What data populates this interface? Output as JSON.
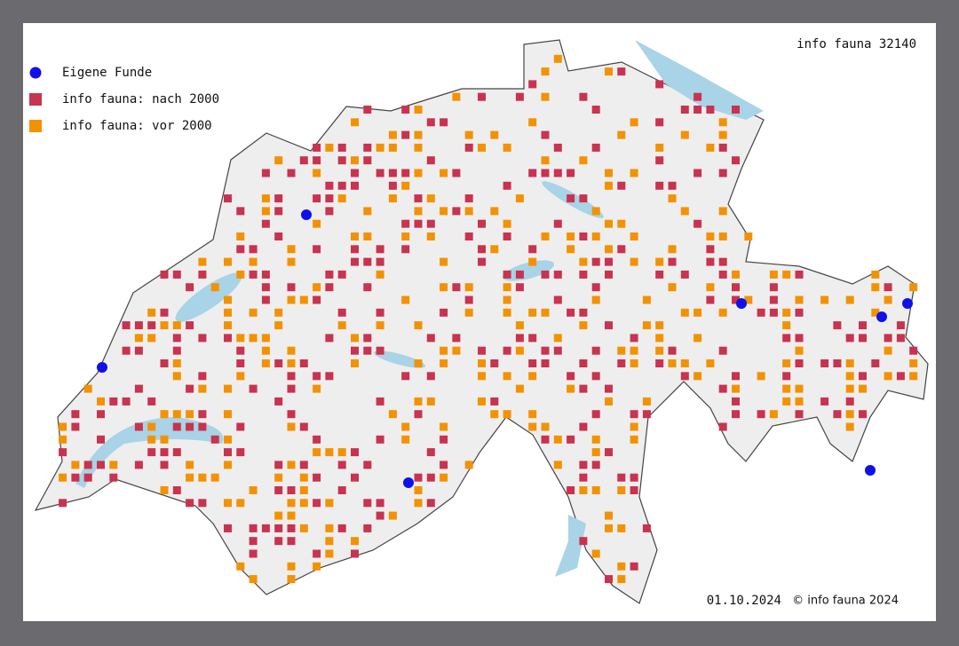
{
  "map": {
    "header": "info fauna 32140",
    "legend": [
      {
        "label": "Eigene Funde",
        "color": "#1010e8",
        "shape": "circle"
      },
      {
        "label": "info fauna: nach 2000",
        "color": "#c8334f",
        "shape": "square"
      },
      {
        "label": "info fauna: vor 2000",
        "color": "#f39200",
        "shape": "square"
      }
    ],
    "date": "01.10.2024",
    "copyright": "© info fauna 2024"
  }
}
